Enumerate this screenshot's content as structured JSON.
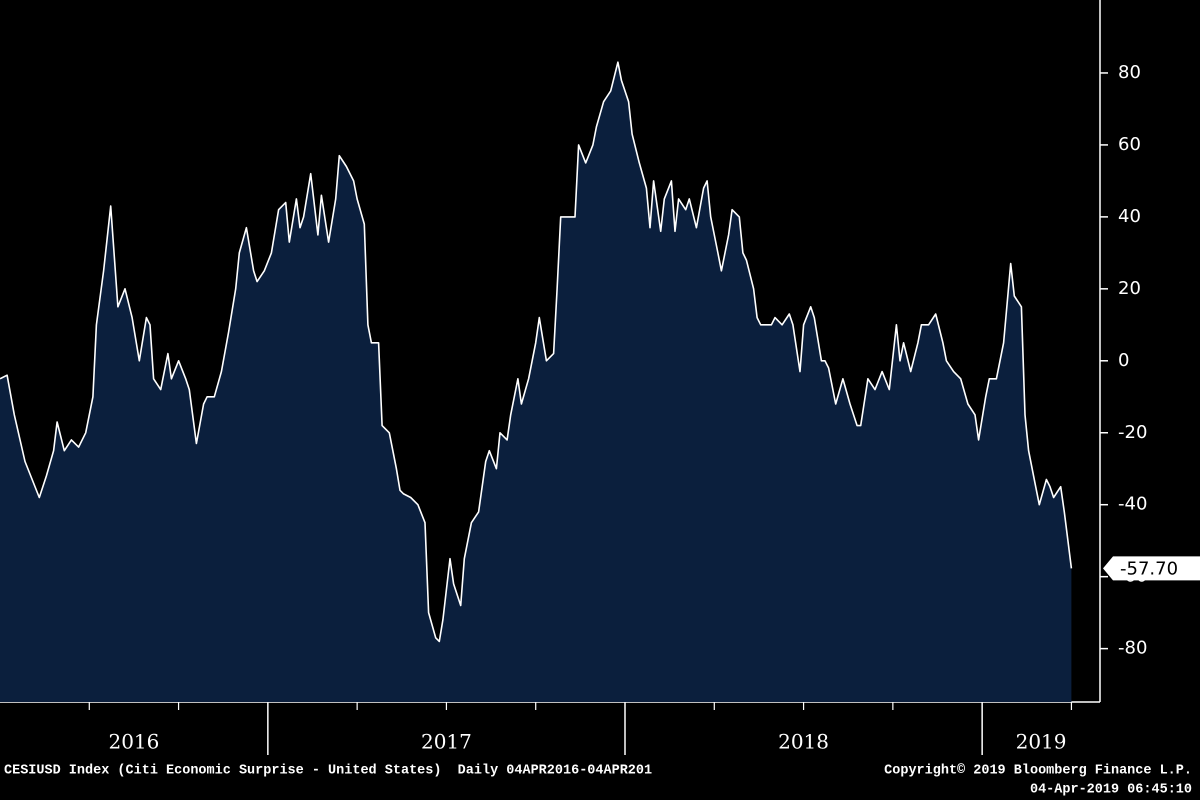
{
  "chart_data": {
    "type": "area",
    "series": [
      {
        "color": "#ffffff",
        "fill": "#0b1f3d",
        "values": [
          -5,
          -4,
          -15,
          -28,
          -38,
          -32,
          -25,
          -17,
          -25,
          -22,
          -24,
          -20,
          -10,
          10,
          25,
          43,
          15,
          20,
          12,
          0,
          12,
          10,
          -5,
          -8,
          2,
          -5,
          0,
          -5,
          -8,
          -23,
          -12,
          -10,
          -10,
          -3,
          8,
          20,
          30,
          37,
          25,
          22,
          25,
          30,
          42,
          44,
          33,
          45,
          37,
          40,
          52,
          35,
          46,
          33,
          45,
          57,
          54,
          50,
          45,
          38,
          10,
          5,
          5,
          -18,
          -20,
          -30,
          -36,
          -37,
          -38,
          -40,
          -45,
          -70,
          -77,
          -78,
          -72,
          -55,
          -62,
          -68,
          -55,
          -45,
          -42,
          -28,
          -25,
          -30,
          -20,
          -22,
          -15,
          -5,
          -12,
          -5,
          5,
          12,
          0,
          2,
          20,
          40,
          40,
          40,
          60,
          55,
          60,
          65,
          72,
          75,
          83,
          78,
          72,
          63,
          55,
          48,
          37,
          50,
          36,
          45,
          50,
          36,
          45,
          42,
          45,
          37,
          48,
          50,
          40,
          30,
          25,
          35,
          42,
          40,
          30,
          28,
          20,
          12,
          10,
          10,
          12,
          10,
          13,
          10,
          -3,
          10,
          15,
          12,
          0,
          0,
          -2,
          -12,
          -5,
          -12,
          -18,
          -18,
          -5,
          -8,
          -3,
          -8,
          10,
          0,
          5,
          -3,
          5,
          10,
          10,
          13,
          5,
          0,
          -3,
          -5,
          -12,
          -15,
          -22,
          -10,
          -5,
          -5,
          0,
          5,
          27,
          18,
          15,
          -15,
          -25,
          -35,
          -40,
          -33,
          -35,
          -38,
          -35,
          -42,
          -57.7
        ]
      }
    ],
    "x": [
      2016.25,
      2016.27,
      2016.29,
      2016.32,
      2016.36,
      2016.38,
      2016.4,
      2016.41,
      2016.43,
      2016.45,
      2016.47,
      2016.49,
      2016.51,
      2016.52,
      2016.54,
      2016.56,
      2016.58,
      2016.6,
      2016.62,
      2016.64,
      2016.66,
      2016.67,
      2016.68,
      2016.7,
      2016.72,
      2016.73,
      2016.75,
      2016.77,
      2016.78,
      2016.8,
      2016.82,
      2016.83,
      2016.85,
      2016.87,
      2016.89,
      2016.91,
      2016.92,
      2016.94,
      2016.96,
      2016.97,
      2016.99,
      2017.01,
      2017.03,
      2017.05,
      2017.06,
      2017.08,
      2017.09,
      2017.1,
      2017.12,
      2017.14,
      2017.15,
      2017.17,
      2017.19,
      2017.2,
      2017.22,
      2017.24,
      2017.25,
      2017.27,
      2017.28,
      2017.29,
      2017.31,
      2017.32,
      2017.34,
      2017.36,
      2017.37,
      2017.38,
      2017.4,
      2017.42,
      2017.44,
      2017.45,
      2017.47,
      2017.48,
      2017.49,
      2017.51,
      2017.52,
      2017.54,
      2017.55,
      2017.57,
      2017.59,
      2017.61,
      2017.62,
      2017.64,
      2017.65,
      2017.67,
      2017.68,
      2017.7,
      2017.71,
      2017.73,
      2017.75,
      2017.76,
      2017.78,
      2017.8,
      2017.81,
      2017.82,
      2017.84,
      2017.86,
      2017.87,
      2017.89,
      2017.91,
      2017.92,
      2017.94,
      2017.96,
      2017.98,
      2017.99,
      2018.01,
      2018.02,
      2018.04,
      2018.06,
      2018.07,
      2018.08,
      2018.1,
      2018.11,
      2018.13,
      2018.14,
      2018.15,
      2018.17,
      2018.18,
      2018.2,
      2018.22,
      2018.23,
      2018.24,
      2018.26,
      2018.27,
      2018.29,
      2018.3,
      2018.32,
      2018.33,
      2018.34,
      2018.36,
      2018.37,
      2018.38,
      2018.41,
      2018.42,
      2018.44,
      2018.46,
      2018.47,
      2018.49,
      2018.5,
      2018.52,
      2018.53,
      2018.55,
      2018.56,
      2018.57,
      2018.59,
      2018.61,
      2018.63,
      2018.65,
      2018.66,
      2018.68,
      2018.7,
      2018.72,
      2018.74,
      2018.76,
      2018.77,
      2018.78,
      2018.8,
      2018.82,
      2018.83,
      2018.85,
      2018.87,
      2018.89,
      2018.9,
      2018.92,
      2018.94,
      2018.96,
      2018.98,
      2018.99,
      2019.01,
      2019.02,
      2019.04,
      2019.05,
      2019.06,
      2019.08,
      2019.09,
      2019.11,
      2019.12,
      2019.13,
      2019.15,
      2019.16,
      2019.18,
      2019.19,
      2019.2,
      2019.22,
      2019.23,
      2019.25
    ],
    "xlim": [
      2016.25,
      2019.33
    ],
    "xticks": [
      2016,
      2017,
      2018,
      2019
    ],
    "ylim": [
      -94,
      100
    ],
    "yticks": [
      -80,
      -60,
      -40,
      -20,
      0,
      20,
      40,
      60,
      80
    ],
    "last_value_label": "-57.70"
  },
  "footer": {
    "left": "CESIUSD Index (Citi Economic Surprise - United States)  Daily 04APR2016-04APR201",
    "right": "Copyright© 2019 Bloomberg Finance L.P.",
    "timestamp": "04-Apr-2019 06:45:10"
  }
}
